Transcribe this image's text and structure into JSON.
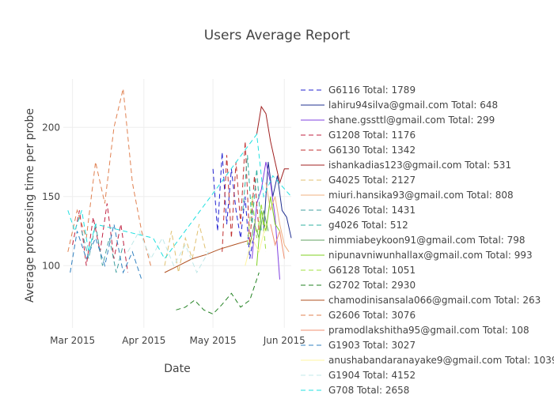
{
  "chart_data": {
    "type": "line",
    "title": "Users Average Report",
    "xlabel": "Date",
    "ylabel": "Average processing time per probe",
    "x_ticks": [
      "Mar 2015",
      "Apr 2015",
      "May 2015",
      "Jun 2015"
    ],
    "x_range": [
      "2015-02-25",
      "2015-06-04"
    ],
    "y_ticks": [
      100,
      150,
      200
    ],
    "ylim": [
      55,
      235
    ],
    "grid": true,
    "legend_position": "right",
    "series": [
      {
        "name": "G6116 Total: 1789",
        "color": "#2020d0",
        "dash": "dash",
        "data": [
          [
            "2015-05-01",
            170
          ],
          [
            "2015-05-03",
            125
          ],
          [
            "2015-05-05",
            182
          ],
          [
            "2015-05-07",
            130
          ],
          [
            "2015-05-09",
            170
          ],
          [
            "2015-05-11",
            140
          ],
          [
            "2015-05-13",
            120
          ],
          [
            "2015-05-15",
            150
          ],
          [
            "2015-05-17",
            105
          ],
          [
            "2015-05-19",
            125
          ]
        ]
      },
      {
        "name": "lahiru94silva@gmail.com Total: 648",
        "color": "#203090",
        "dash": "solid",
        "data": [
          [
            "2015-05-23",
            125
          ],
          [
            "2015-05-25",
            175
          ],
          [
            "2015-05-27",
            150
          ],
          [
            "2015-05-29",
            165
          ],
          [
            "2015-05-31",
            140
          ],
          [
            "2015-06-02",
            135
          ],
          [
            "2015-06-04",
            120
          ]
        ]
      },
      {
        "name": "shane.gssttl@gmail.com Total: 299",
        "color": "#8040e0",
        "dash": "solid",
        "data": [
          [
            "2015-05-18",
            105
          ],
          [
            "2015-05-20",
            145
          ],
          [
            "2015-05-22",
            155
          ],
          [
            "2015-05-24",
            175
          ],
          [
            "2015-05-26",
            160
          ],
          [
            "2015-05-28",
            135
          ],
          [
            "2015-05-30",
            90
          ]
        ]
      },
      {
        "name": "G1208 Total: 1176",
        "color": "#c02040",
        "dash": "dash",
        "data": [
          [
            "2015-03-01",
            115
          ],
          [
            "2015-03-04",
            140
          ],
          [
            "2015-03-07",
            100
          ],
          [
            "2015-03-10",
            135
          ],
          [
            "2015-03-13",
            110
          ],
          [
            "2015-03-16",
            145
          ],
          [
            "2015-03-19",
            105
          ],
          [
            "2015-03-22",
            130
          ],
          [
            "2015-03-25",
            95
          ]
        ]
      },
      {
        "name": "G6130 Total: 1342",
        "color": "#c03030",
        "dash": "dash",
        "data": [
          [
            "2015-05-05",
            110
          ],
          [
            "2015-05-07",
            180
          ],
          [
            "2015-05-09",
            120
          ],
          [
            "2015-05-11",
            175
          ],
          [
            "2015-05-13",
            130
          ],
          [
            "2015-05-15",
            190
          ],
          [
            "2015-05-17",
            115
          ],
          [
            "2015-05-19",
            165
          ],
          [
            "2015-05-21",
            125
          ]
        ]
      },
      {
        "name": "ishankadias123@gmail.com Total: 531",
        "color": "#a02020",
        "dash": "solid",
        "data": [
          [
            "2015-05-20",
            195
          ],
          [
            "2015-05-22",
            215
          ],
          [
            "2015-05-24",
            210
          ],
          [
            "2015-05-26",
            190
          ],
          [
            "2015-05-28",
            175
          ],
          [
            "2015-05-30",
            160
          ],
          [
            "2015-06-01",
            170
          ],
          [
            "2015-06-03",
            170
          ]
        ]
      },
      {
        "name": "G4025 Total: 2127",
        "color": "#e0c070",
        "dash": "dash",
        "data": [
          [
            "2015-04-10",
            100
          ],
          [
            "2015-04-13",
            125
          ],
          [
            "2015-04-16",
            95
          ],
          [
            "2015-04-19",
            120
          ],
          [
            "2015-04-22",
            105
          ],
          [
            "2015-04-25",
            130
          ],
          [
            "2015-04-28",
            110
          ]
        ]
      },
      {
        "name": "miuri.hansika93@gmail.com Total: 808",
        "color": "#f0b080",
        "dash": "solid",
        "data": [
          [
            "2015-05-24",
            160
          ],
          [
            "2015-05-26",
            140
          ],
          [
            "2015-05-28",
            150
          ],
          [
            "2015-05-30",
            130
          ],
          [
            "2015-06-01",
            115
          ],
          [
            "2015-06-03",
            110
          ]
        ]
      },
      {
        "name": "G4026 Total: 1431",
        "color": "#40a0a0",
        "dash": "dash",
        "data": [
          [
            "2015-03-05",
            125
          ],
          [
            "2015-03-08",
            105
          ],
          [
            "2015-03-11",
            130
          ],
          [
            "2015-03-14",
            100
          ],
          [
            "2015-03-17",
            120
          ],
          [
            "2015-03-20",
            95
          ],
          [
            "2015-03-23",
            115
          ]
        ]
      },
      {
        "name": "g4026 Total: 512",
        "color": "#30b0a0",
        "dash": "dash",
        "data": [
          [
            "2015-05-14",
            140
          ],
          [
            "2015-05-16",
            180
          ],
          [
            "2015-05-18",
            130
          ],
          [
            "2015-05-20",
            170
          ],
          [
            "2015-05-22",
            125
          ]
        ]
      },
      {
        "name": "nimmiabeykoon91@gmail.com Total: 798",
        "color": "#60a060",
        "dash": "solid",
        "data": [
          [
            "2015-05-17",
            115
          ],
          [
            "2015-05-19",
            130
          ],
          [
            "2015-05-21",
            120
          ],
          [
            "2015-05-23",
            140
          ],
          [
            "2015-05-25",
            125
          ]
        ]
      },
      {
        "name": "nipunavniwunhallax@gmail.com Total: 993",
        "color": "#80d020",
        "dash": "solid",
        "data": [
          [
            "2015-05-20",
            100
          ],
          [
            "2015-05-22",
            140
          ],
          [
            "2015-05-24",
            125
          ],
          [
            "2015-05-26",
            150
          ],
          [
            "2015-05-28",
            130
          ],
          [
            "2015-05-30",
            125
          ]
        ]
      },
      {
        "name": "G6128 Total: 1051",
        "color": "#a0e040",
        "dash": "dash",
        "data": [
          [
            "2015-05-16",
            115
          ],
          [
            "2015-05-18",
            150
          ],
          [
            "2015-05-20",
            120
          ],
          [
            "2015-05-22",
            145
          ],
          [
            "2015-05-24",
            110
          ]
        ]
      },
      {
        "name": "G2702 Total: 2930",
        "color": "#208020",
        "dash": "dash",
        "data": [
          [
            "2015-04-15",
            68
          ],
          [
            "2015-04-19",
            70
          ],
          [
            "2015-04-23",
            75
          ],
          [
            "2015-04-27",
            68
          ],
          [
            "2015-05-01",
            65
          ],
          [
            "2015-05-05",
            72
          ],
          [
            "2015-05-09",
            80
          ],
          [
            "2015-05-13",
            70
          ],
          [
            "2015-05-17",
            75
          ],
          [
            "2015-05-21",
            95
          ]
        ]
      },
      {
        "name": "chamodinisansala066@gmail.com Total: 263",
        "color": "#b05020",
        "dash": "solid",
        "data": [
          [
            "2015-04-10",
            95
          ],
          [
            "2015-04-16",
            100
          ],
          [
            "2015-04-22",
            105
          ],
          [
            "2015-04-28",
            108
          ],
          [
            "2015-05-04",
            112
          ],
          [
            "2015-05-10",
            115
          ],
          [
            "2015-05-16",
            118
          ]
        ]
      },
      {
        "name": "G2606 Total: 3076",
        "color": "#e08050",
        "dash": "dash",
        "data": [
          [
            "2015-02-27",
            110
          ],
          [
            "2015-03-03",
            140
          ],
          [
            "2015-03-07",
            120
          ],
          [
            "2015-03-11",
            175
          ],
          [
            "2015-03-15",
            145
          ],
          [
            "2015-03-19",
            200
          ],
          [
            "2015-03-23",
            228
          ],
          [
            "2015-03-27",
            160
          ],
          [
            "2015-03-31",
            125
          ],
          [
            "2015-04-04",
            100
          ]
        ]
      },
      {
        "name": "pramodlakshitha95@gmail.com Total: 108",
        "color": "#f09070",
        "dash": "solid",
        "data": [
          [
            "2015-05-26",
            130
          ],
          [
            "2015-05-28",
            115
          ],
          [
            "2015-05-30",
            125
          ],
          [
            "2015-06-01",
            105
          ]
        ]
      },
      {
        "name": "G1903 Total: 3027",
        "color": "#3080c0",
        "dash": "dash",
        "data": [
          [
            "2015-02-28",
            95
          ],
          [
            "2015-03-03",
            125
          ],
          [
            "2015-03-07",
            105
          ],
          [
            "2015-03-11",
            120
          ],
          [
            "2015-03-15",
            100
          ],
          [
            "2015-03-19",
            130
          ],
          [
            "2015-03-23",
            95
          ],
          [
            "2015-03-27",
            110
          ],
          [
            "2015-03-31",
            90
          ]
        ]
      },
      {
        "name": "anushabandaranayake9@gmail.com Total: 1039",
        "color": "#fff5a0",
        "dash": "solid",
        "data": [
          [
            "2015-05-15",
            100
          ],
          [
            "2015-05-18",
            120
          ],
          [
            "2015-05-21",
            110
          ],
          [
            "2015-05-24",
            130
          ]
        ]
      },
      {
        "name": "G1904 Total: 4152",
        "color": "#c0e8e8",
        "dash": "dash",
        "data": [
          [
            "2015-03-25",
            110
          ],
          [
            "2015-03-30",
            125
          ],
          [
            "2015-04-04",
            105
          ],
          [
            "2015-04-09",
            120
          ],
          [
            "2015-04-14",
            100
          ],
          [
            "2015-04-19",
            115
          ],
          [
            "2015-04-24",
            95
          ],
          [
            "2015-04-29",
            110
          ]
        ]
      },
      {
        "name": "G708 Total: 2658",
        "color": "#20e0e0",
        "dash": "dash",
        "data": [
          [
            "2015-02-27",
            140
          ],
          [
            "2015-03-02",
            125
          ],
          [
            "2015-03-05",
            140
          ],
          [
            "2015-03-08",
            110
          ],
          [
            "2015-03-11",
            130
          ],
          [
            "2015-04-05",
            120
          ],
          [
            "2015-04-10",
            105
          ],
          [
            "2015-05-20",
            195
          ],
          [
            "2015-05-23",
            150
          ],
          [
            "2015-05-27",
            165
          ],
          [
            "2015-06-04",
            150
          ]
        ]
      }
    ]
  }
}
